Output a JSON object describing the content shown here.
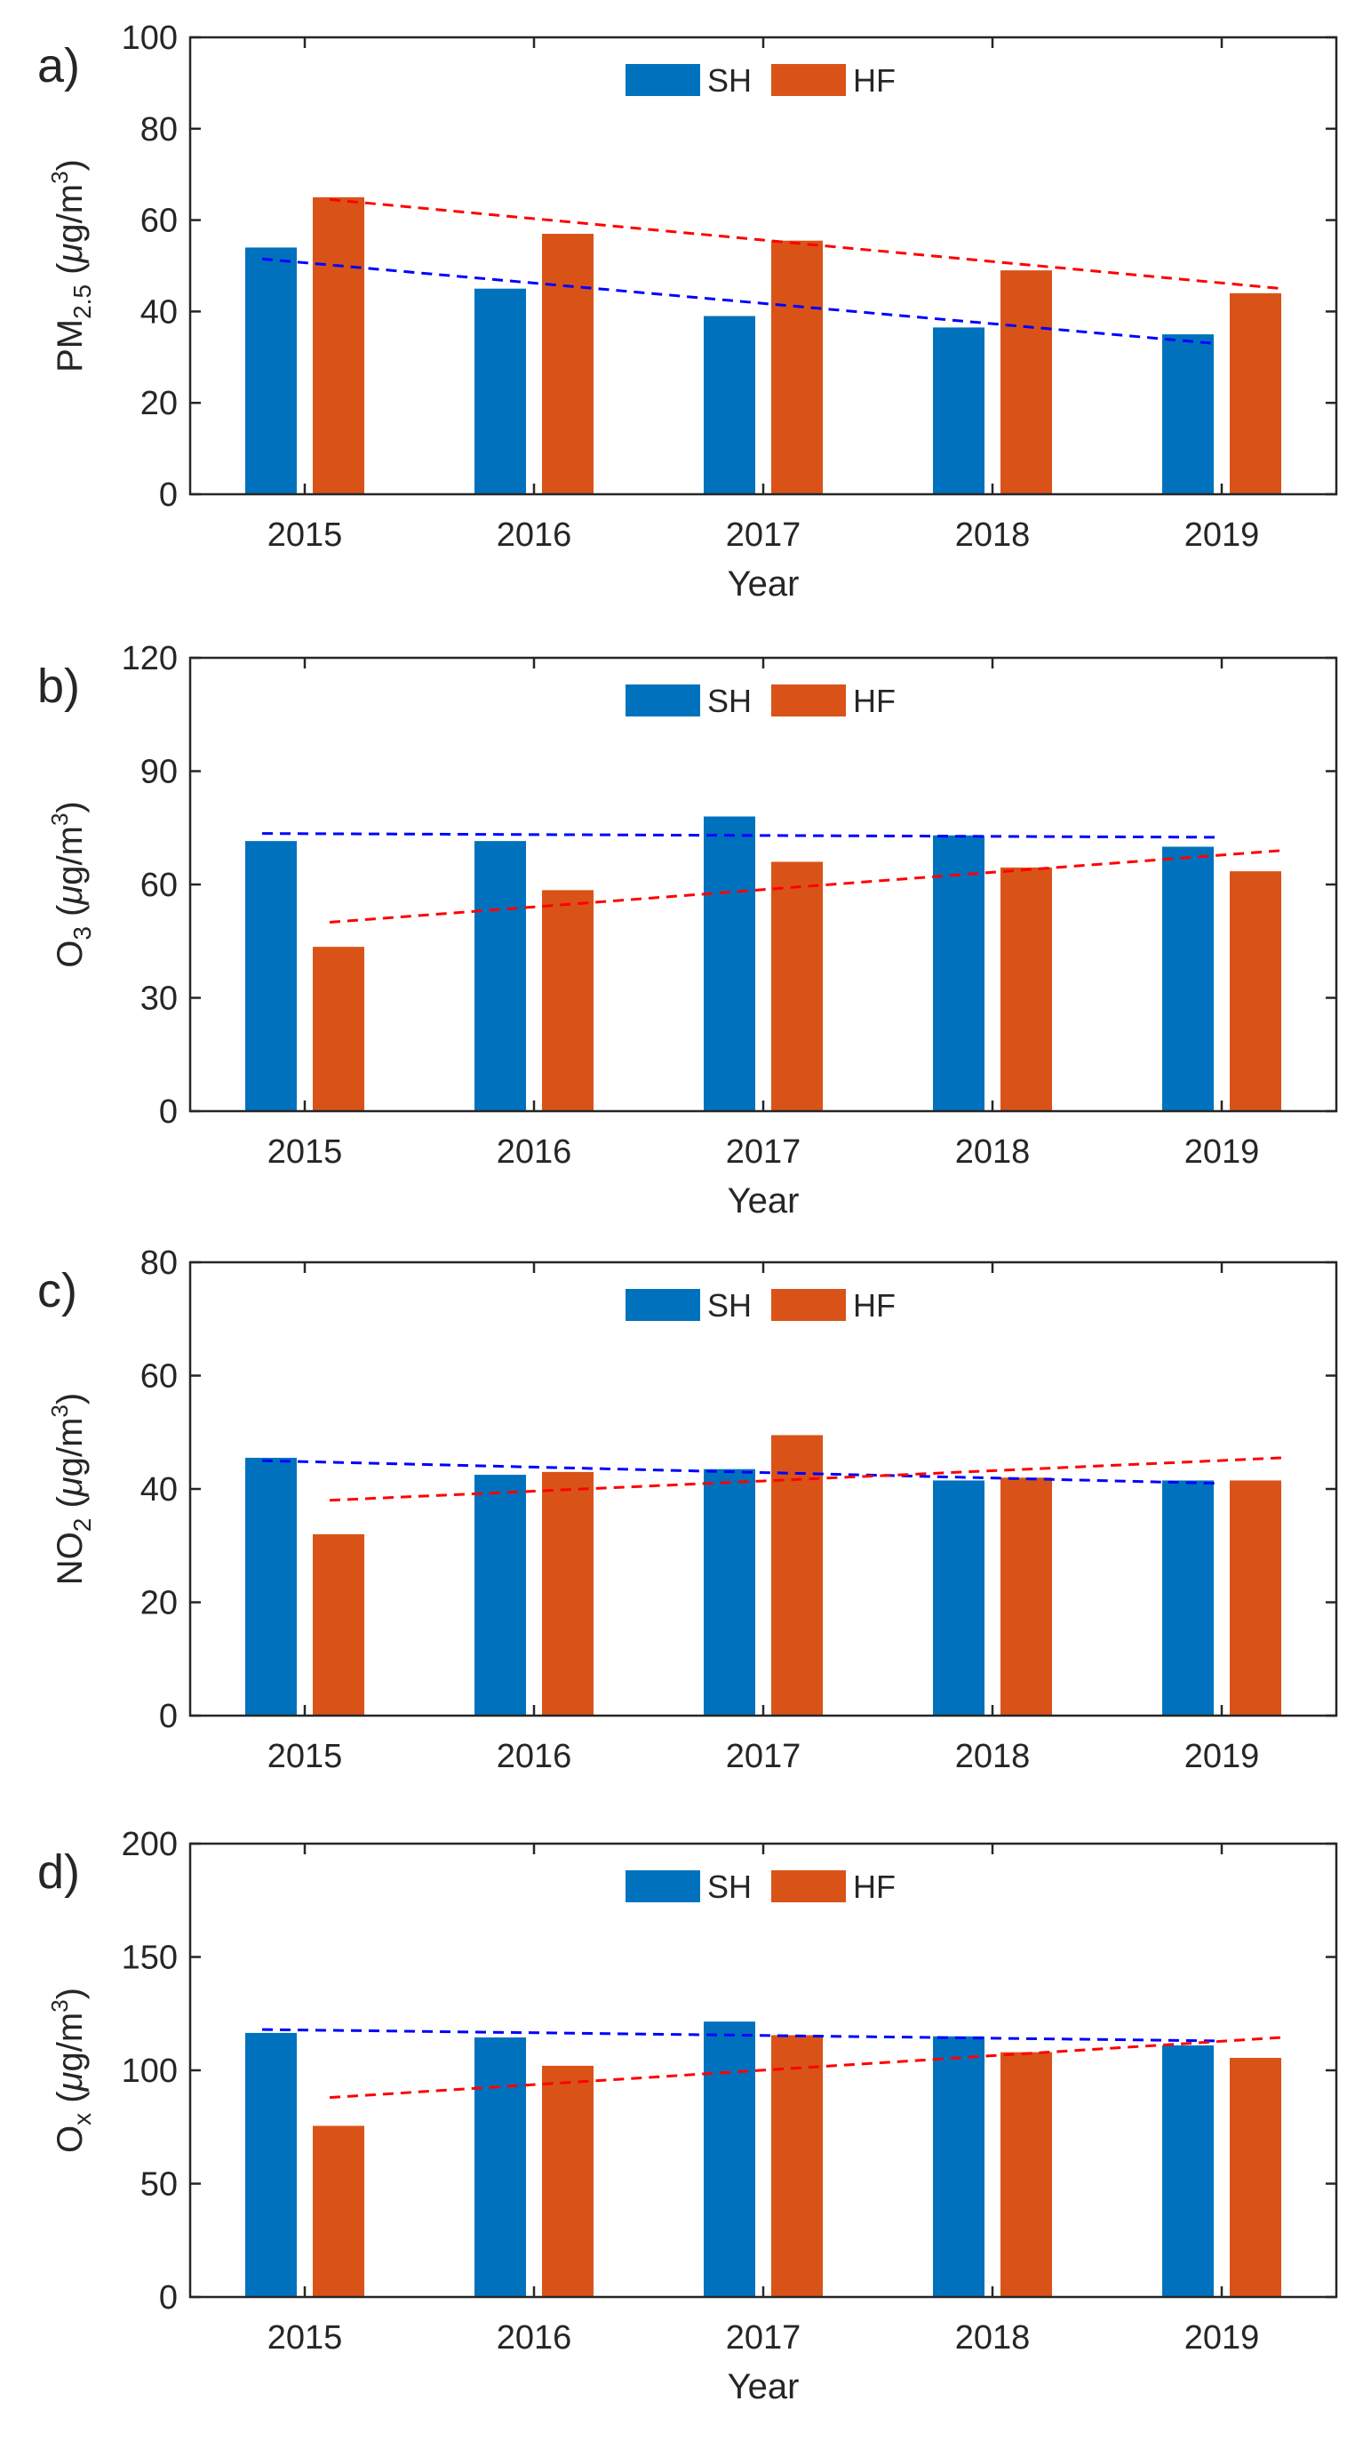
{
  "figure": {
    "colors": {
      "SH": "#0072BD",
      "HF": "#D95319",
      "SH_trend": "#0000FF",
      "HF_trend": "#FF0000",
      "axis": "#262626"
    }
  },
  "chart_data": [
    {
      "type": "bar",
      "panel_label": "a)",
      "title": "",
      "xlabel": "Year",
      "ylabel_main": "PM",
      "ylabel_sub": "2.5",
      "ylabel_mid": " (",
      "ylabel_mu": "μ",
      "ylabel_unit": "g/m",
      "ylabel_sup": "3",
      "ylabel_end": ")",
      "ylim": [
        0,
        100
      ],
      "yticks": [
        0,
        20,
        40,
        60,
        80,
        100
      ],
      "categories": [
        "2015",
        "2016",
        "2017",
        "2018",
        "2019"
      ],
      "series": [
        {
          "name": "SH",
          "values": [
            54,
            45,
            39,
            36.5,
            35
          ],
          "trend": [
            51.5,
            33
          ]
        },
        {
          "name": "HF",
          "values": [
            65,
            57,
            55.5,
            49,
            44
          ],
          "trend": [
            64.5,
            45
          ]
        }
      ],
      "legend": [
        "SH",
        "HF"
      ],
      "legend_position": "top-center",
      "grid": false
    },
    {
      "type": "bar",
      "panel_label": "b)",
      "title": "",
      "xlabel": "Year",
      "ylabel_main": "O",
      "ylabel_sub": "3",
      "ylabel_mid": " (",
      "ylabel_mu": "μ",
      "ylabel_unit": "g/m",
      "ylabel_sup": "3",
      "ylabel_end": ")",
      "ylim": [
        0,
        120
      ],
      "yticks": [
        0,
        30,
        60,
        90,
        120
      ],
      "categories": [
        "2015",
        "2016",
        "2017",
        "2018",
        "2019"
      ],
      "series": [
        {
          "name": "SH",
          "values": [
            71.5,
            71.5,
            78,
            73,
            70
          ],
          "trend": [
            73.5,
            72.5
          ]
        },
        {
          "name": "HF",
          "values": [
            43.5,
            58.5,
            66,
            64.5,
            63.5
          ],
          "trend": [
            50,
            69
          ]
        }
      ],
      "legend": [
        "SH",
        "HF"
      ],
      "legend_position": "top-center",
      "grid": false
    },
    {
      "type": "bar",
      "panel_label": "c)",
      "title": "",
      "xlabel": "",
      "ylabel_main": "NO",
      "ylabel_sub": "2",
      "ylabel_mid": " (",
      "ylabel_mu": "μ",
      "ylabel_unit": "g/m",
      "ylabel_sup": "3",
      "ylabel_end": ")",
      "ylim": [
        0,
        80
      ],
      "yticks": [
        0,
        20,
        40,
        60,
        80
      ],
      "categories": [
        "2015",
        "2016",
        "2017",
        "2018",
        "2019"
      ],
      "series": [
        {
          "name": "SH",
          "values": [
            45.5,
            42.5,
            43.5,
            41.5,
            41.5
          ],
          "trend": [
            45,
            41
          ]
        },
        {
          "name": "HF",
          "values": [
            32,
            43,
            49.5,
            42,
            41.5
          ],
          "trend": [
            38,
            45.5
          ]
        }
      ],
      "legend": [
        "SH",
        "HF"
      ],
      "legend_position": "top-center",
      "grid": false
    },
    {
      "type": "bar",
      "panel_label": "d)",
      "title": "",
      "xlabel": "Year",
      "ylabel_main": "O",
      "ylabel_sub": "x",
      "ylabel_mid": " (",
      "ylabel_mu": "μ",
      "ylabel_unit": "g/m",
      "ylabel_sup": "3",
      "ylabel_end": ")",
      "ylim": [
        0,
        200
      ],
      "yticks": [
        0,
        50,
        100,
        150,
        200
      ],
      "categories": [
        "2015",
        "2016",
        "2017",
        "2018",
        "2019"
      ],
      "series": [
        {
          "name": "SH",
          "values": [
            116.5,
            114.5,
            121.5,
            115,
            111
          ],
          "trend": [
            118,
            113
          ]
        },
        {
          "name": "HF",
          "values": [
            75.5,
            102,
            115.5,
            108,
            105.5
          ],
          "trend": [
            88,
            114.5
          ]
        }
      ],
      "legend": [
        "SH",
        "HF"
      ],
      "legend_position": "top-center",
      "grid": false
    }
  ]
}
